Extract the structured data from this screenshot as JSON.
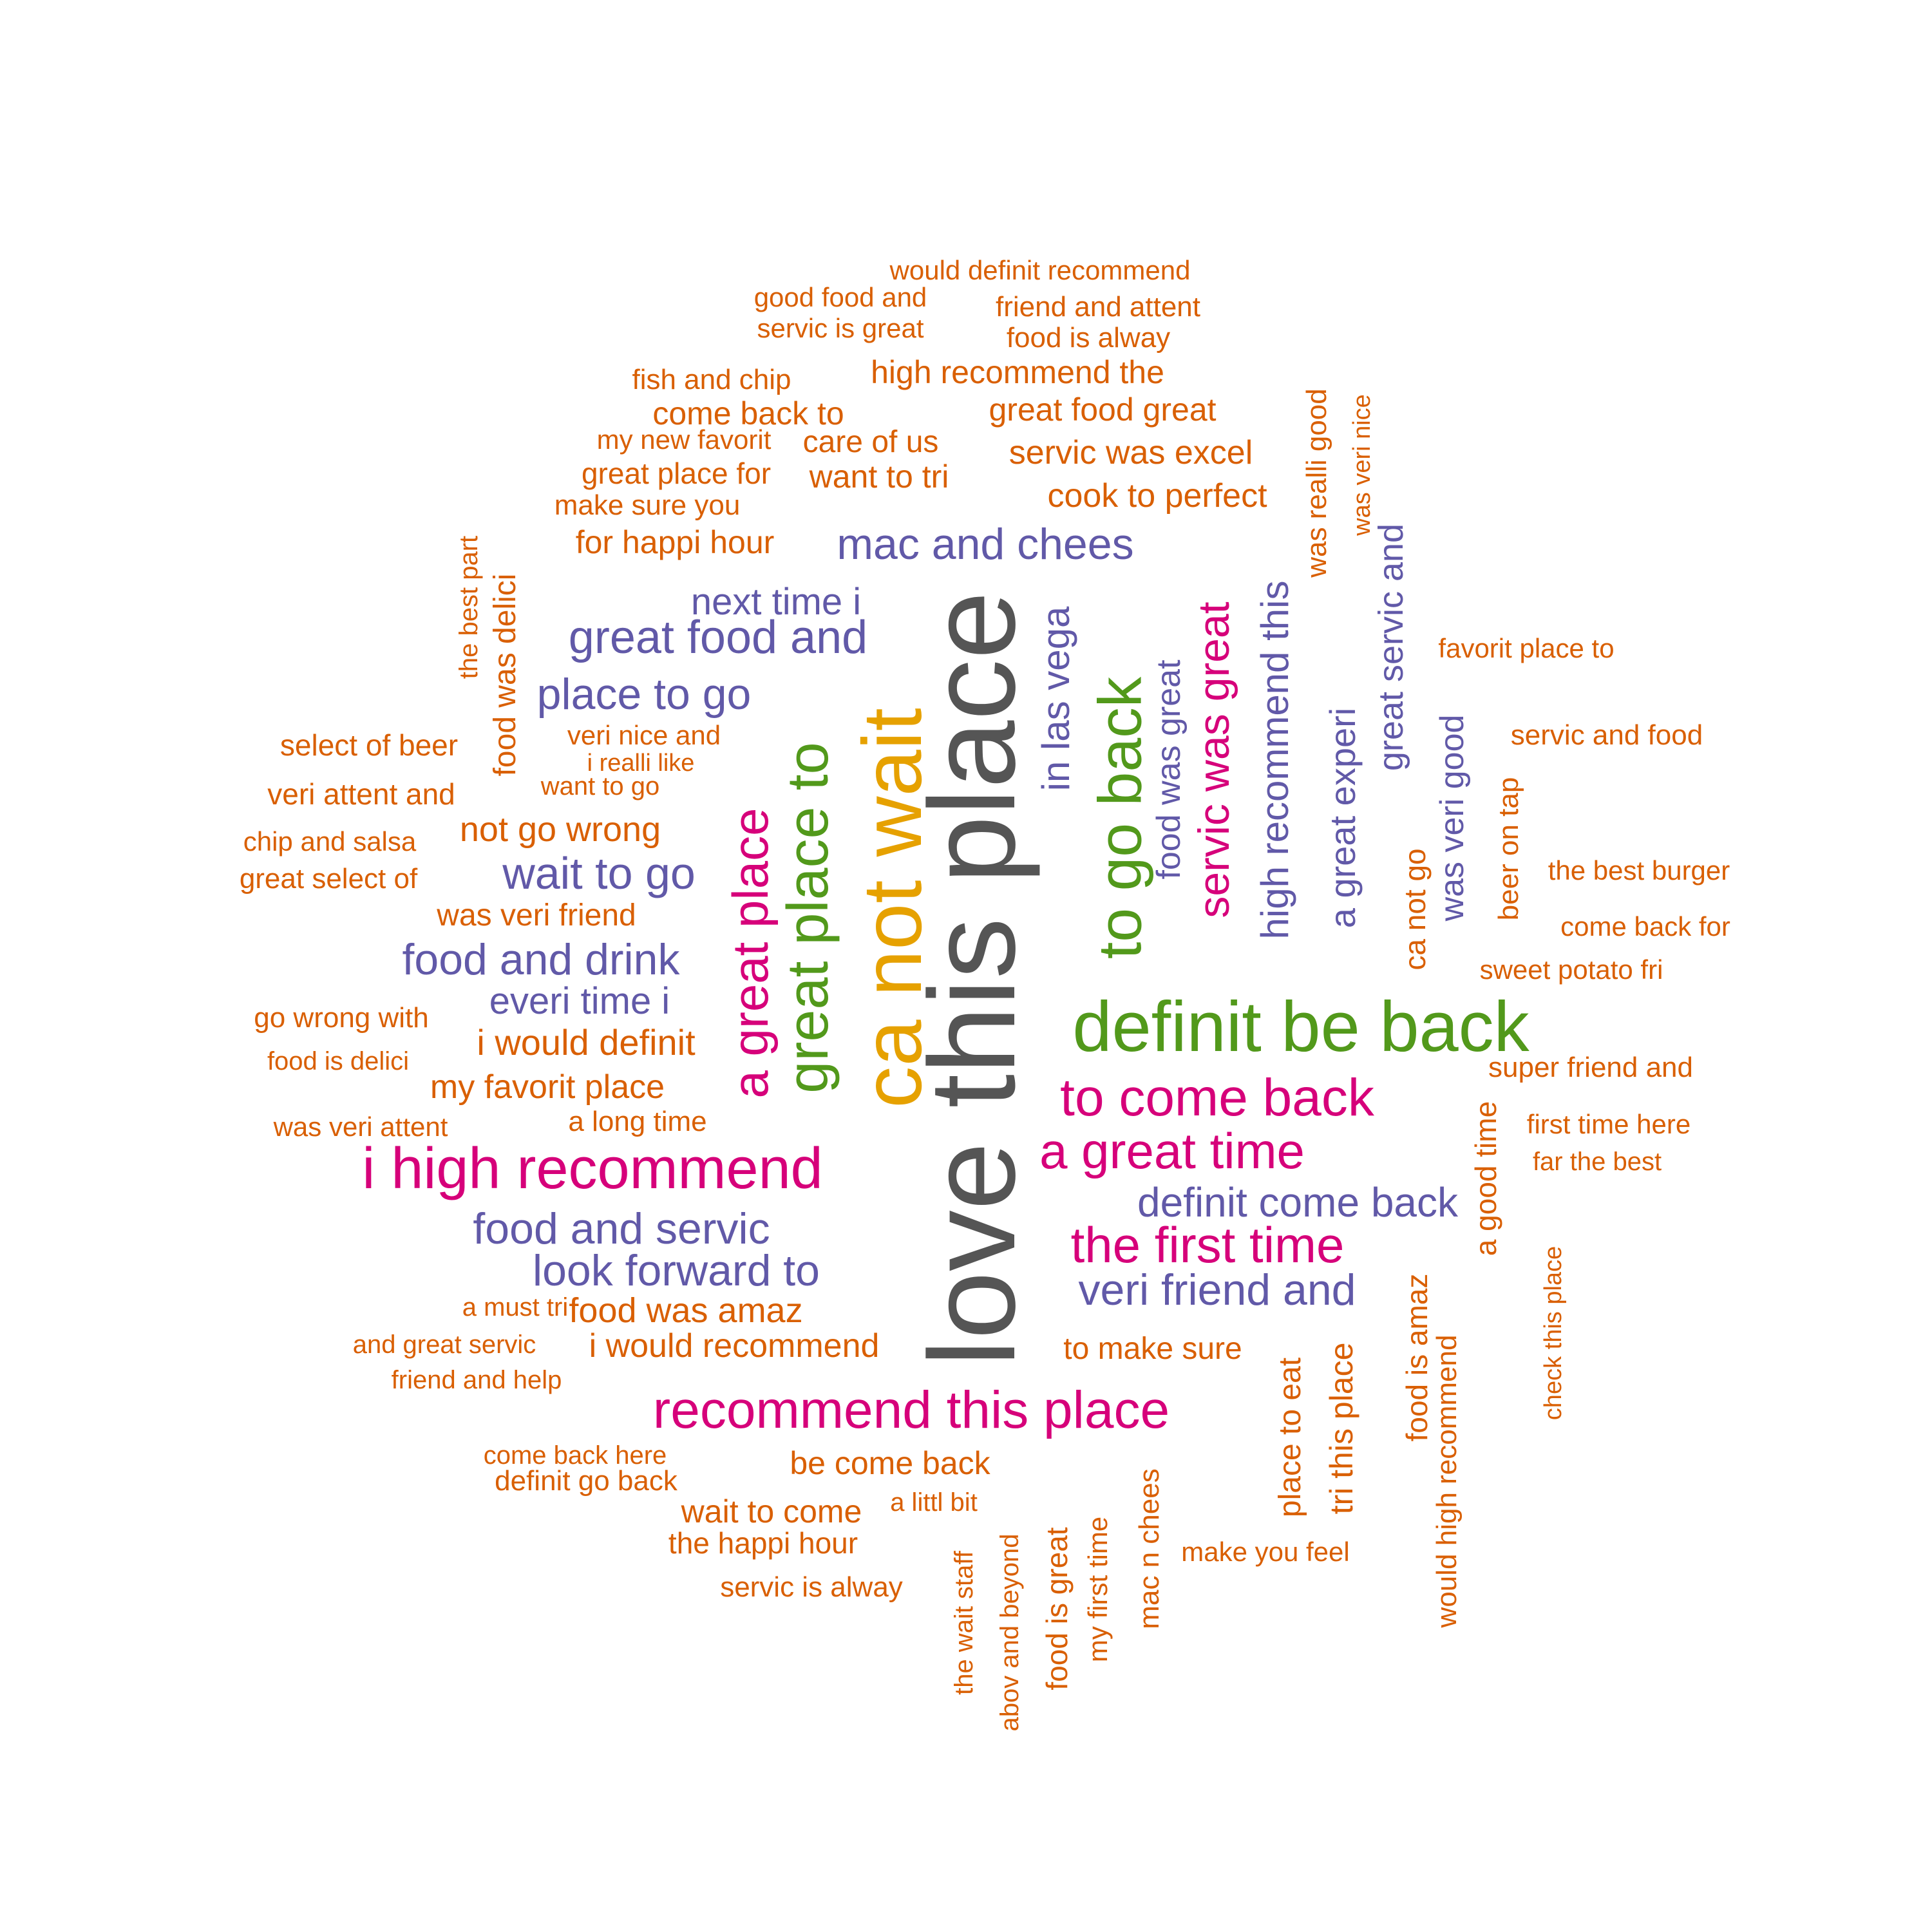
{
  "colors": {
    "orange": "#d95f02",
    "purple": "#6159a8",
    "magenta": "#d6007a",
    "green": "#52991b",
    "gold": "#e6a100",
    "gray": "#555555"
  },
  "words": [
    {
      "text": "love this place",
      "color": "gray",
      "vertical": true
    },
    {
      "text": "ca not wait",
      "color": "gold",
      "vertical": true
    },
    {
      "text": "definit be back",
      "color": "green",
      "vertical": false
    },
    {
      "text": "great place to",
      "color": "green",
      "vertical": true
    },
    {
      "text": "to go back",
      "color": "green",
      "vertical": true
    },
    {
      "text": "i high recommend",
      "color": "magenta",
      "vertical": false
    },
    {
      "text": "recommend this place",
      "color": "magenta",
      "vertical": false
    },
    {
      "text": "a great place",
      "color": "magenta",
      "vertical": true
    },
    {
      "text": "to come back",
      "color": "magenta",
      "vertical": false
    },
    {
      "text": "a great time",
      "color": "magenta",
      "vertical": false
    },
    {
      "text": "the first time",
      "color": "magenta",
      "vertical": false
    },
    {
      "text": "servic was great",
      "color": "magenta",
      "vertical": true
    },
    {
      "text": "mac and chees",
      "color": "purple",
      "vertical": false
    },
    {
      "text": "next time i",
      "color": "purple",
      "vertical": false
    },
    {
      "text": "great food and",
      "color": "purple",
      "vertical": false
    },
    {
      "text": "place to go",
      "color": "purple",
      "vertical": false
    },
    {
      "text": "wait to go",
      "color": "purple",
      "vertical": false
    },
    {
      "text": "food and drink",
      "color": "purple",
      "vertical": false
    },
    {
      "text": "everi time i",
      "color": "purple",
      "vertical": false
    },
    {
      "text": "food and servic",
      "color": "purple",
      "vertical": false
    },
    {
      "text": "look forward to",
      "color": "purple",
      "vertical": false
    },
    {
      "text": "definit come back",
      "color": "purple",
      "vertical": false
    },
    {
      "text": "veri friend and",
      "color": "purple",
      "vertical": false
    },
    {
      "text": "in las vega",
      "color": "purple",
      "vertical": true
    },
    {
      "text": "food was great",
      "color": "purple",
      "vertical": true
    },
    {
      "text": "high recommend this",
      "color": "purple",
      "vertical": true
    },
    {
      "text": "a great experi",
      "color": "purple",
      "vertical": true
    },
    {
      "text": "great servic and",
      "color": "purple",
      "vertical": true
    },
    {
      "text": "was veri good",
      "color": "purple",
      "vertical": true
    },
    {
      "text": "would definit recommend",
      "color": "orange",
      "vertical": false
    },
    {
      "text": "good food and",
      "color": "orange",
      "vertical": false
    },
    {
      "text": "friend and attent",
      "color": "orange",
      "vertical": false
    },
    {
      "text": "servic is great",
      "color": "orange",
      "vertical": false
    },
    {
      "text": "food is alway",
      "color": "orange",
      "vertical": false
    },
    {
      "text": "fish and chip",
      "color": "orange",
      "vertical": false
    },
    {
      "text": "high recommend the",
      "color": "orange",
      "vertical": false
    },
    {
      "text": "come back to",
      "color": "orange",
      "vertical": false
    },
    {
      "text": "great food great",
      "color": "orange",
      "vertical": false
    },
    {
      "text": "my new favorit",
      "color": "orange",
      "vertical": false
    },
    {
      "text": "care of us",
      "color": "orange",
      "vertical": false
    },
    {
      "text": "servic was excel",
      "color": "orange",
      "vertical": false
    },
    {
      "text": "great place for",
      "color": "orange",
      "vertical": false
    },
    {
      "text": "want to tri",
      "color": "orange",
      "vertical": false
    },
    {
      "text": "make sure you",
      "color": "orange",
      "vertical": false
    },
    {
      "text": "cook to perfect",
      "color": "orange",
      "vertical": false
    },
    {
      "text": "for happi hour",
      "color": "orange",
      "vertical": false
    },
    {
      "text": "favorit place to",
      "color": "orange",
      "vertical": false
    },
    {
      "text": "select of beer",
      "color": "orange",
      "vertical": false
    },
    {
      "text": "veri nice and",
      "color": "orange",
      "vertical": false
    },
    {
      "text": "i realli like",
      "color": "orange",
      "vertical": false
    },
    {
      "text": "servic and food",
      "color": "orange",
      "vertical": false
    },
    {
      "text": "veri attent and",
      "color": "orange",
      "vertical": false
    },
    {
      "text": "want to go",
      "color": "orange",
      "vertical": false
    },
    {
      "text": "not go wrong",
      "color": "orange",
      "vertical": false
    },
    {
      "text": "chip and salsa",
      "color": "orange",
      "vertical": false
    },
    {
      "text": "great select of",
      "color": "orange",
      "vertical": false
    },
    {
      "text": "the best burger",
      "color": "orange",
      "vertical": false
    },
    {
      "text": "was veri friend",
      "color": "orange",
      "vertical": false
    },
    {
      "text": "come back for",
      "color": "orange",
      "vertical": false
    },
    {
      "text": "sweet potato fri",
      "color": "orange",
      "vertical": false
    },
    {
      "text": "go wrong with",
      "color": "orange",
      "vertical": false
    },
    {
      "text": "i would definit",
      "color": "orange",
      "vertical": false
    },
    {
      "text": "food is delici",
      "color": "orange",
      "vertical": false
    },
    {
      "text": "super friend and",
      "color": "orange",
      "vertical": false
    },
    {
      "text": "my favorit place",
      "color": "orange",
      "vertical": false
    },
    {
      "text": "was veri attent",
      "color": "orange",
      "vertical": false
    },
    {
      "text": "a long time",
      "color": "orange",
      "vertical": false
    },
    {
      "text": "first time here",
      "color": "orange",
      "vertical": false
    },
    {
      "text": "far the best",
      "color": "orange",
      "vertical": false
    },
    {
      "text": "a must tri",
      "color": "orange",
      "vertical": false
    },
    {
      "text": "food was amaz",
      "color": "orange",
      "vertical": false
    },
    {
      "text": "and great servic",
      "color": "orange",
      "vertical": false
    },
    {
      "text": "i would recommend",
      "color": "orange",
      "vertical": false
    },
    {
      "text": "to make sure",
      "color": "orange",
      "vertical": false
    },
    {
      "text": "friend and help",
      "color": "orange",
      "vertical": false
    },
    {
      "text": "come back here",
      "color": "orange",
      "vertical": false
    },
    {
      "text": "be come back",
      "color": "orange",
      "vertical": false
    },
    {
      "text": "definit go back",
      "color": "orange",
      "vertical": false
    },
    {
      "text": "a littl bit",
      "color": "orange",
      "vertical": false
    },
    {
      "text": "wait to come",
      "color": "orange",
      "vertical": false
    },
    {
      "text": "make you feel",
      "color": "orange",
      "vertical": false
    },
    {
      "text": "the happi hour",
      "color": "orange",
      "vertical": false
    },
    {
      "text": "servic is alway",
      "color": "orange",
      "vertical": false
    },
    {
      "text": "the best part",
      "color": "orange",
      "vertical": true
    },
    {
      "text": "food was delici",
      "color": "orange",
      "vertical": true
    },
    {
      "text": "was realli good",
      "color": "orange",
      "vertical": true
    },
    {
      "text": "was veri nice",
      "color": "orange",
      "vertical": true
    },
    {
      "text": "beer on tap",
      "color": "orange",
      "vertical": true
    },
    {
      "text": "ca not go",
      "color": "orange",
      "vertical": true
    },
    {
      "text": "a good time",
      "color": "orange",
      "vertical": true
    },
    {
      "text": "check this place",
      "color": "orange",
      "vertical": true
    },
    {
      "text": "food is amaz",
      "color": "orange",
      "vertical": true
    },
    {
      "text": "would high recommend",
      "color": "orange",
      "vertical": true
    },
    {
      "text": "place to eat",
      "color": "orange",
      "vertical": true
    },
    {
      "text": "tri this place",
      "color": "orange",
      "vertical": true
    },
    {
      "text": "mac n chees",
      "color": "orange",
      "vertical": true
    },
    {
      "text": "my first time",
      "color": "orange",
      "vertical": true
    },
    {
      "text": "food is great",
      "color": "orange",
      "vertical": true
    },
    {
      "text": "abov and beyond",
      "color": "orange",
      "vertical": true
    },
    {
      "text": "the wait staff",
      "color": "orange",
      "vertical": true
    }
  ]
}
